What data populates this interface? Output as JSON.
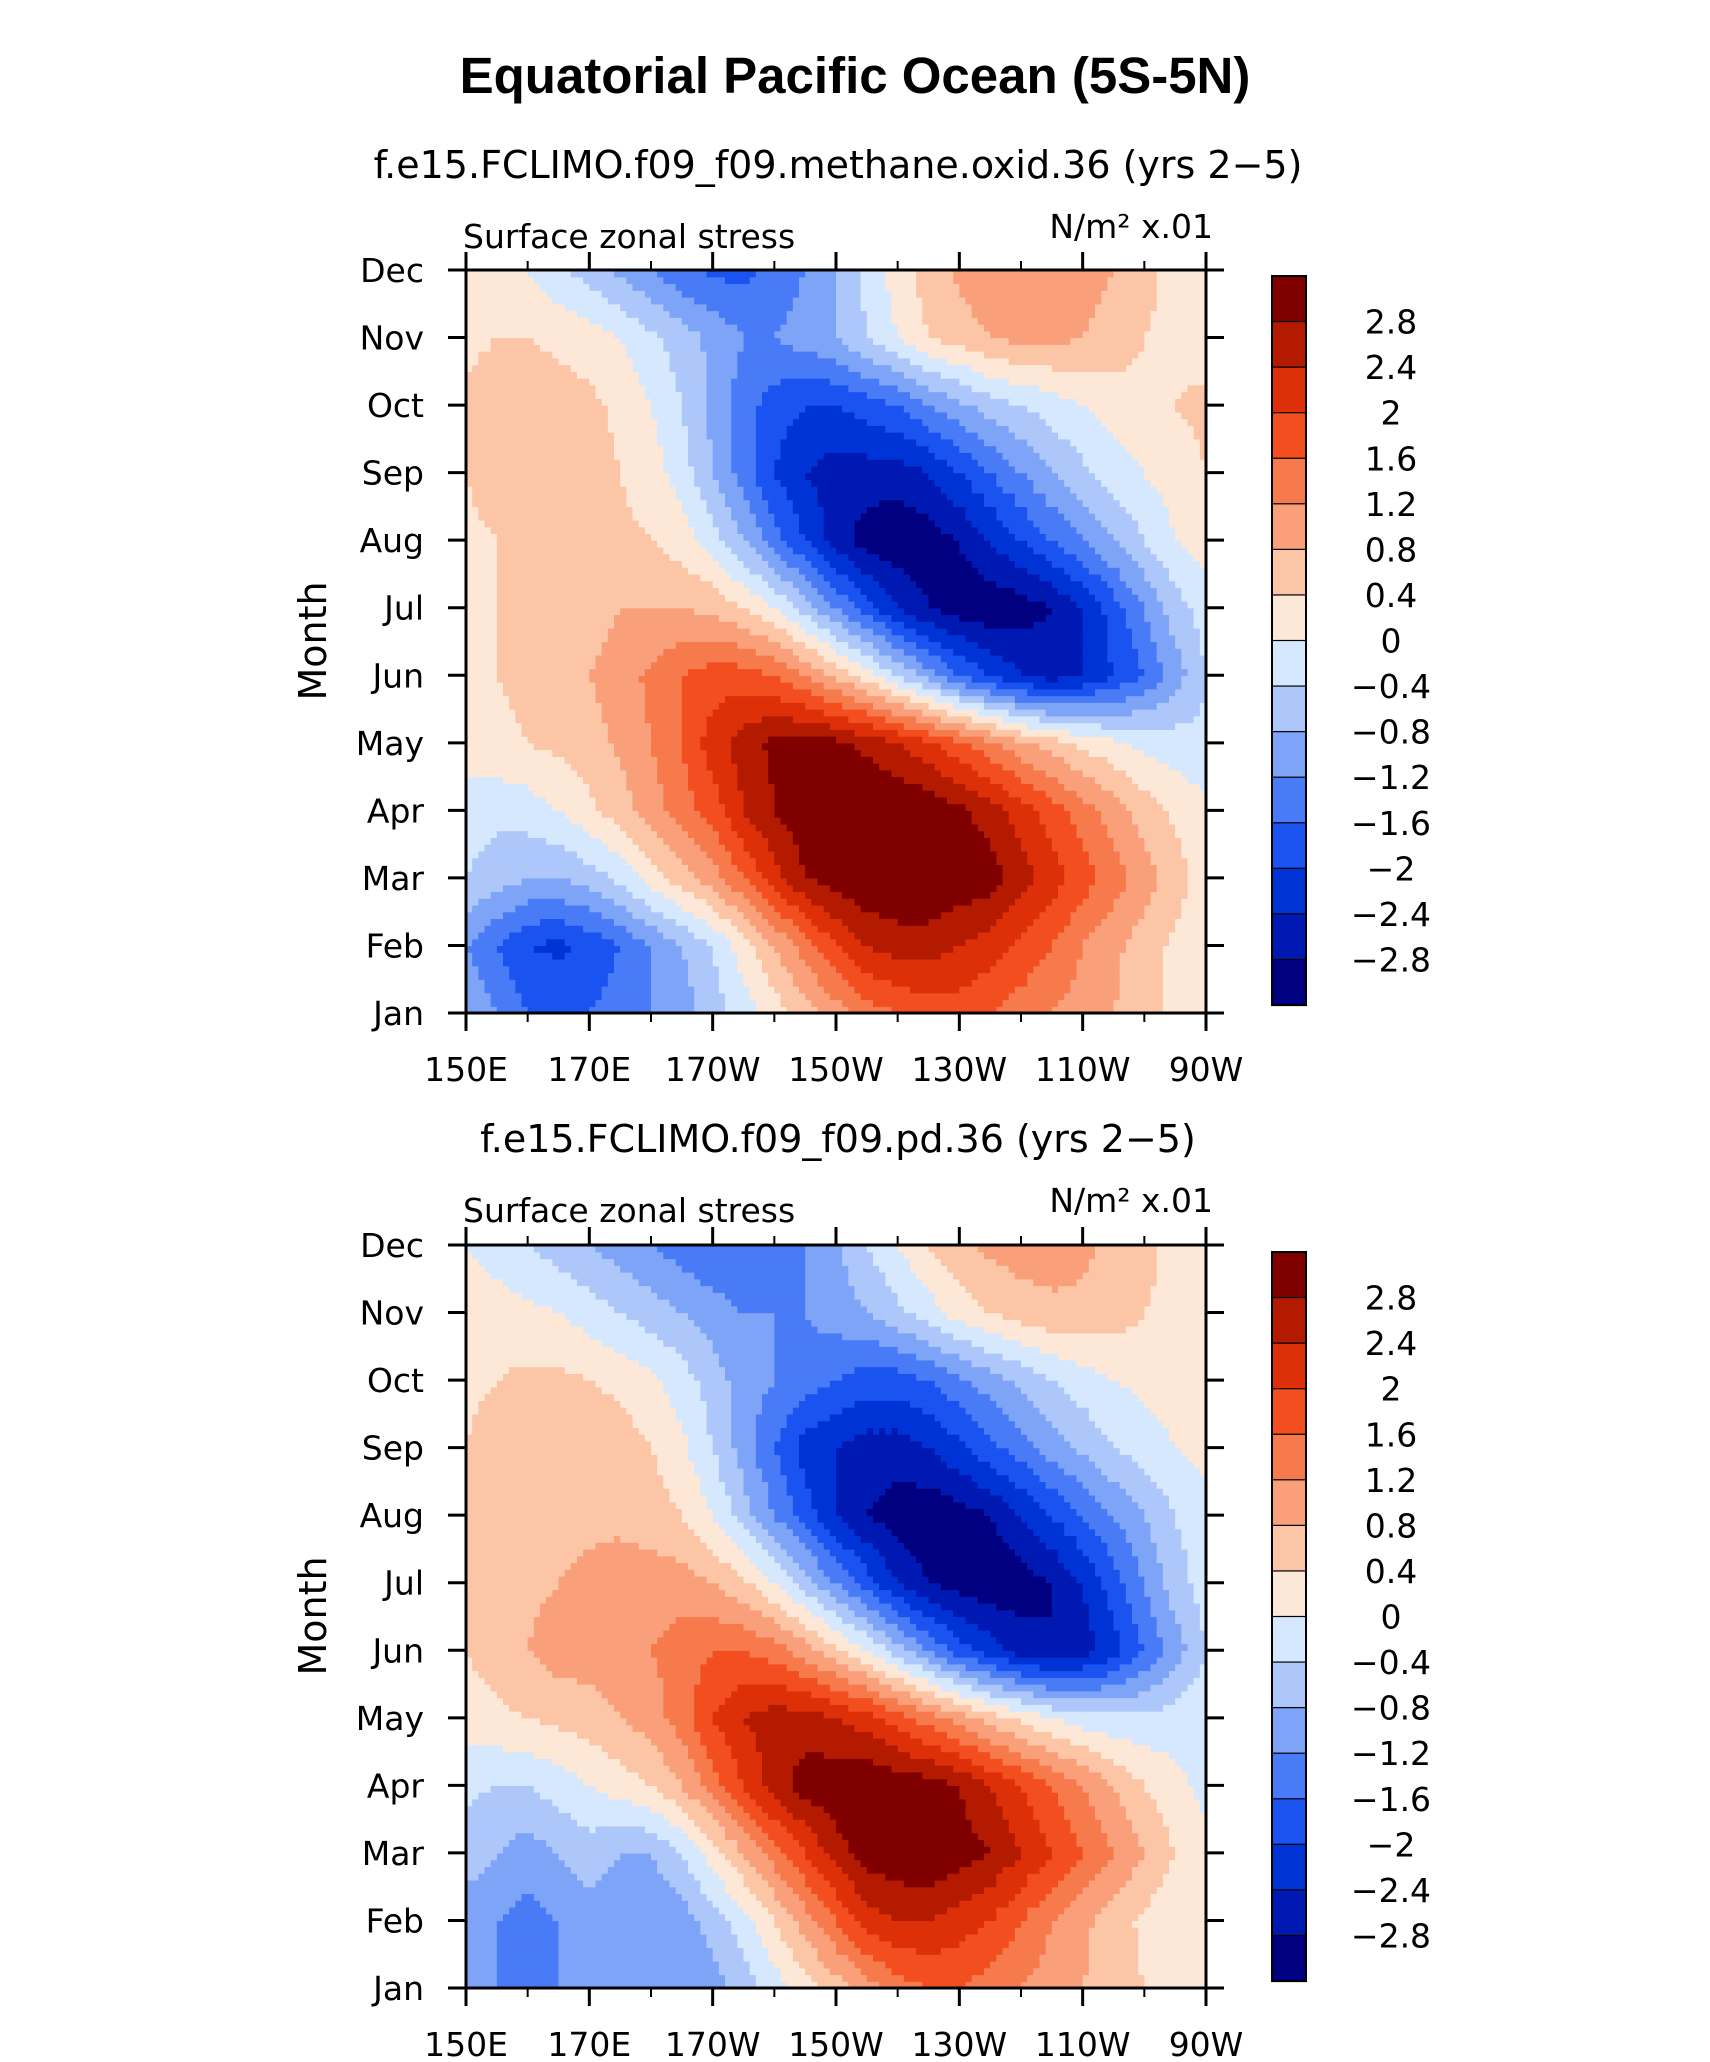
{
  "figure": {
    "title": "Equatorial Pacific Ocean (5S-5N)"
  },
  "palette": [
    "#000080",
    "#0019b3",
    "#0033d6",
    "#1a53f0",
    "#4a7bf7",
    "#7ea4f8",
    "#adc7fb",
    "#d5e8fd",
    "#fde8d8",
    "#fbc5a6",
    "#f9a07a",
    "#f77a4d",
    "#f24e20",
    "#dd3008",
    "#b31a00",
    "#800000"
  ],
  "chart_data": [
    {
      "type": "heatmap",
      "title": "f.e15.FCLIMO.f09_f09.methane.oxid.36 (yrs 2−5)",
      "left_label": "Surface zonal stress",
      "right_label": "N/m² x.01",
      "xlabel": "",
      "ylabel": "Month",
      "x_ticks": [
        "150E",
        "170E",
        "170W",
        "150W",
        "130W",
        "110W",
        "90W"
      ],
      "y_ticks": [
        "Jan",
        "Feb",
        "Mar",
        "Apr",
        "May",
        "Jun",
        "Jul",
        "Aug",
        "Sep",
        "Oct",
        "Nov",
        "Dec"
      ],
      "xlim": [
        150,
        270
      ],
      "ylim": [
        1,
        12
      ],
      "colorbar_labels": [
        "2.8",
        "2.4",
        "2",
        "1.6",
        "1.2",
        "0.8",
        "0.4",
        "0",
        "−0.4",
        "−0.8",
        "−1.2",
        "−1.6",
        "−2",
        "−2.4",
        "−2.8"
      ],
      "contour_levels": [
        -2.8,
        -2.4,
        -2,
        -1.6,
        -1.2,
        -0.8,
        -0.4,
        0,
        0.4,
        0.8,
        1.2,
        1.6,
        2,
        2.4,
        2.8
      ],
      "x": [
        150,
        155,
        160,
        165,
        170,
        175,
        180,
        185,
        190,
        195,
        200,
        205,
        210,
        215,
        220,
        225,
        230,
        235,
        240,
        245,
        250,
        255,
        260,
        265,
        270
      ],
      "y": [
        1,
        2,
        3,
        4,
        5,
        6,
        7,
        8,
        9,
        10,
        11,
        12
      ],
      "z": [
        [
          -0.8,
          -1.2,
          -1.6,
          -1.6,
          -1.6,
          -1.4,
          -1.2,
          -1.0,
          -0.6,
          -0.2,
          0.2,
          0.6,
          1.0,
          1.4,
          1.6,
          1.8,
          1.8,
          1.6,
          1.4,
          1.2,
          1.0,
          0.8,
          0.6,
          0.3,
          0.1
        ],
        [
          -1.2,
          -1.6,
          -2.0,
          -2.1,
          -1.9,
          -1.6,
          -1.2,
          -0.8,
          -0.4,
          0.2,
          0.8,
          1.4,
          2.0,
          2.4,
          2.6,
          2.6,
          2.4,
          2.2,
          1.9,
          1.6,
          1.2,
          0.9,
          0.6,
          0.3,
          0.1
        ],
        [
          -0.4,
          -0.6,
          -0.8,
          -0.8,
          -0.6,
          -0.3,
          0.2,
          0.6,
          1.0,
          1.6,
          2.2,
          2.8,
          3.0,
          3.2,
          3.2,
          3.2,
          3.1,
          3.0,
          2.6,
          2.2,
          1.8,
          1.4,
          1.0,
          0.6,
          0.2
        ],
        [
          -0.2,
          -0.3,
          -0.2,
          0.0,
          0.3,
          0.6,
          1.0,
          1.4,
          1.8,
          2.4,
          2.8,
          3.1,
          3.2,
          3.2,
          3.2,
          3.1,
          2.9,
          2.6,
          2.2,
          1.8,
          1.4,
          1.0,
          0.6,
          0.3,
          0.1
        ],
        [
          0.2,
          0.3,
          0.4,
          0.5,
          0.6,
          0.9,
          1.2,
          1.6,
          2.2,
          2.6,
          2.9,
          3.0,
          2.9,
          2.7,
          2.4,
          2.1,
          1.7,
          1.3,
          0.9,
          0.6,
          0.3,
          0.1,
          -0.1,
          -0.2,
          -0.3
        ],
        [
          0.3,
          0.4,
          0.5,
          0.6,
          0.8,
          1.0,
          1.3,
          1.6,
          1.8,
          1.8,
          1.6,
          1.2,
          0.7,
          0.2,
          -0.4,
          -1.0,
          -1.6,
          -2.0,
          -2.4,
          -2.6,
          -2.4,
          -2.0,
          -1.6,
          -1.0,
          -0.4
        ],
        [
          0.3,
          0.4,
          0.5,
          0.5,
          0.6,
          0.8,
          0.8,
          0.8,
          0.7,
          0.4,
          0.0,
          -0.6,
          -1.2,
          -1.8,
          -2.4,
          -2.8,
          -3.0,
          -3.1,
          -3.0,
          -2.8,
          -2.4,
          -1.8,
          -1.2,
          -0.6,
          -0.2
        ],
        [
          0.3,
          0.4,
          0.5,
          0.5,
          0.5,
          0.5,
          0.4,
          0.2,
          -0.2,
          -0.8,
          -1.4,
          -2.0,
          -2.6,
          -3.0,
          -3.1,
          -3.0,
          -2.8,
          -2.4,
          -2.0,
          -1.6,
          -1.2,
          -0.8,
          -0.4,
          0.0,
          0.2
        ],
        [
          0.4,
          0.6,
          0.8,
          0.8,
          0.6,
          0.4,
          0.2,
          -0.2,
          -0.8,
          -1.4,
          -2.0,
          -2.4,
          -2.6,
          -2.6,
          -2.6,
          -2.4,
          -2.0,
          -1.6,
          -1.2,
          -0.8,
          -0.5,
          -0.2,
          0.0,
          0.2,
          0.4
        ],
        [
          0.5,
          0.6,
          0.7,
          0.6,
          0.5,
          0.3,
          0.0,
          -0.4,
          -0.9,
          -1.4,
          -1.8,
          -2.0,
          -2.0,
          -1.8,
          -1.6,
          -1.2,
          -0.9,
          -0.6,
          -0.4,
          -0.2,
          0.0,
          0.2,
          0.3,
          0.4,
          0.5
        ],
        [
          0.3,
          0.4,
          0.4,
          0.3,
          0.2,
          0.0,
          -0.3,
          -0.6,
          -0.9,
          -1.2,
          -1.2,
          -1.0,
          -0.8,
          -0.4,
          0.0,
          0.4,
          0.6,
          0.8,
          0.9,
          0.9,
          0.8,
          0.6,
          0.4,
          0.3,
          0.2
        ],
        [
          0.2,
          0.2,
          0.0,
          -0.3,
          -0.6,
          -0.9,
          -1.2,
          -1.5,
          -1.7,
          -1.7,
          -1.5,
          -1.2,
          -0.8,
          -0.3,
          0.2,
          0.6,
          0.9,
          1.1,
          1.2,
          1.2,
          1.0,
          0.8,
          0.5,
          0.3,
          0.2
        ]
      ]
    },
    {
      "type": "heatmap",
      "title": "f.e15.FCLIMO.f09_f09.pd.36 (yrs 2−5)",
      "left_label": "Surface zonal stress",
      "right_label": "N/m² x.01",
      "xlabel": "",
      "ylabel": "Month",
      "x_ticks": [
        "150E",
        "170E",
        "170W",
        "150W",
        "130W",
        "110W",
        "90W"
      ],
      "y_ticks": [
        "Jan",
        "Feb",
        "Mar",
        "Apr",
        "May",
        "Jun",
        "Jul",
        "Aug",
        "Sep",
        "Oct",
        "Nov",
        "Dec"
      ],
      "xlim": [
        150,
        270
      ],
      "ylim": [
        1,
        12
      ],
      "colorbar_labels": [
        "2.8",
        "2.4",
        "2",
        "1.6",
        "1.2",
        "0.8",
        "0.4",
        "0",
        "−0.4",
        "−0.8",
        "−1.2",
        "−1.6",
        "−2",
        "−2.4",
        "−2.8"
      ],
      "contour_levels": [
        -2.8,
        -2.4,
        -2,
        -1.6,
        -1.2,
        -0.8,
        -0.4,
        0,
        0.4,
        0.8,
        1.2,
        1.6,
        2,
        2.4,
        2.8
      ],
      "x": [
        150,
        155,
        160,
        165,
        170,
        175,
        180,
        185,
        190,
        195,
        200,
        205,
        210,
        215,
        220,
        225,
        230,
        235,
        240,
        245,
        250,
        255,
        260,
        265,
        270
      ],
      "y": [
        1,
        2,
        3,
        4,
        5,
        6,
        7,
        8,
        9,
        10,
        11,
        12
      ],
      "z": [
        [
          -1.0,
          -1.2,
          -1.2,
          -1.2,
          -1.1,
          -1.1,
          -1.2,
          -1.2,
          -1.0,
          -0.6,
          -0.2,
          0.2,
          0.6,
          1.0,
          1.4,
          1.6,
          1.6,
          1.4,
          1.2,
          1.0,
          0.8,
          0.6,
          0.4,
          0.2,
          0.0
        ],
        [
          -1.0,
          -1.2,
          -1.4,
          -1.2,
          -1.0,
          -1.0,
          -1.2,
          -1.0,
          -0.6,
          -0.2,
          0.4,
          1.0,
          1.6,
          2.2,
          2.4,
          2.4,
          2.2,
          2.0,
          1.6,
          1.2,
          0.9,
          0.6,
          0.3,
          0.1,
          0.0
        ],
        [
          -0.6,
          -0.8,
          -1.0,
          -0.8,
          -0.6,
          -0.8,
          -0.8,
          -0.4,
          0.2,
          0.8,
          1.4,
          2.0,
          2.6,
          3.0,
          3.1,
          3.2,
          3.0,
          2.8,
          2.4,
          2.0,
          1.6,
          1.2,
          0.8,
          0.4,
          0.1
        ],
        [
          -0.3,
          -0.4,
          -0.4,
          -0.2,
          0.0,
          0.2,
          0.4,
          0.8,
          1.4,
          2.0,
          2.6,
          3.0,
          3.1,
          3.2,
          3.1,
          3.0,
          2.8,
          2.4,
          2.0,
          1.6,
          1.2,
          0.8,
          0.4,
          0.1,
          -0.1
        ],
        [
          0.2,
          0.3,
          0.4,
          0.5,
          0.6,
          0.8,
          1.0,
          1.4,
          2.0,
          2.4,
          2.6,
          2.6,
          2.4,
          2.2,
          1.8,
          1.4,
          1.0,
          0.6,
          0.3,
          0.0,
          -0.2,
          -0.3,
          -0.3,
          -0.2,
          -0.1
        ],
        [
          0.4,
          0.6,
          0.8,
          1.0,
          1.0,
          1.1,
          1.2,
          1.4,
          1.6,
          1.6,
          1.4,
          1.0,
          0.5,
          0.0,
          -0.6,
          -1.2,
          -1.8,
          -2.2,
          -2.6,
          -2.8,
          -2.6,
          -2.2,
          -1.6,
          -1.0,
          -0.4
        ],
        [
          0.4,
          0.6,
          0.7,
          0.8,
          0.9,
          1.0,
          1.0,
          1.0,
          0.8,
          0.5,
          0.0,
          -0.6,
          -1.2,
          -1.8,
          -2.4,
          -2.8,
          -3.0,
          -3.1,
          -3.0,
          -2.8,
          -2.4,
          -1.8,
          -1.2,
          -0.6,
          -0.2
        ],
        [
          0.4,
          0.5,
          0.6,
          0.7,
          0.7,
          0.7,
          0.6,
          0.4,
          0.0,
          -0.6,
          -1.2,
          -1.8,
          -2.4,
          -2.8,
          -3.0,
          -3.1,
          -3.0,
          -2.8,
          -2.4,
          -2.0,
          -1.6,
          -1.2,
          -0.8,
          -0.4,
          -0.1
        ],
        [
          0.4,
          0.6,
          0.7,
          0.8,
          0.7,
          0.6,
          0.4,
          0.1,
          -0.4,
          -1.0,
          -1.6,
          -2.2,
          -2.4,
          -2.6,
          -2.6,
          -2.4,
          -2.1,
          -1.7,
          -1.4,
          -1.0,
          -0.7,
          -0.4,
          -0.2,
          0.0,
          0.1
        ],
        [
          0.3,
          0.4,
          0.5,
          0.5,
          0.4,
          0.3,
          0.1,
          -0.2,
          -0.6,
          -1.0,
          -1.2,
          -1.4,
          -1.6,
          -1.8,
          -1.8,
          -1.6,
          -1.3,
          -1.0,
          -0.7,
          -0.4,
          -0.2,
          0.0,
          0.1,
          0.2,
          0.2
        ],
        [
          0.2,
          0.2,
          0.1,
          0.0,
          -0.2,
          -0.4,
          -0.6,
          -0.8,
          -1.0,
          -1.2,
          -1.2,
          -1.2,
          -1.0,
          -0.8,
          -0.5,
          -0.2,
          0.2,
          0.4,
          0.6,
          0.7,
          0.7,
          0.6,
          0.4,
          0.3,
          0.2
        ],
        [
          0.0,
          -0.2,
          -0.4,
          -0.6,
          -0.8,
          -1.0,
          -1.2,
          -1.4,
          -1.6,
          -1.6,
          -1.4,
          -1.2,
          -0.9,
          -0.4,
          0.0,
          0.4,
          0.7,
          0.9,
          1.0,
          1.0,
          0.9,
          0.7,
          0.5,
          0.3,
          0.1
        ]
      ]
    }
  ]
}
